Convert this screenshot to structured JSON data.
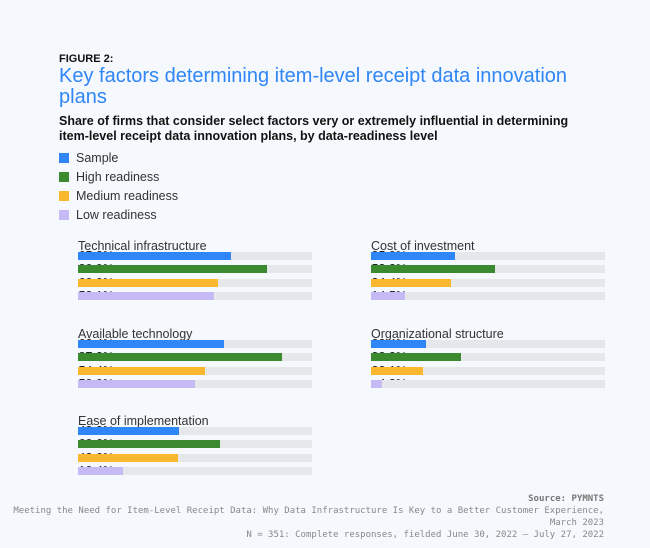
{
  "figure_label": "FIGURE 2:",
  "chart_data": {
    "type": "bar",
    "title": "Key factors determining item-level receipt data innovation plans",
    "subtitle": "Share of firms that consider select factors very or extremely influential in determining item-level receipt data innovation plans, by data-readiness level",
    "xlim": [
      0,
      100
    ],
    "legend_placement": "top-left",
    "series_names": [
      "Sample",
      "High readiness",
      "Medium readiness",
      "Low readiness"
    ],
    "colors": [
      "#2f86f6",
      "#3b8a2f",
      "#fbb82f",
      "#c5b9f6"
    ],
    "groups": [
      {
        "name": "Technical infrastructure",
        "values": [
          65.2,
          80.9,
          60.0,
          58.1
        ],
        "labels": [
          "65.2%",
          "80.9%",
          "60.0%",
          "58.1%"
        ]
      },
      {
        "name": "Cost of investment",
        "values": [
          35.9,
          53.2,
          34.4,
          14.5
        ],
        "labels": [
          "35.9%",
          "53.2%",
          "34.4%",
          "14.5%"
        ]
      },
      {
        "name": "Available technology",
        "values": [
          62.4,
          87.2,
          54.4,
          50.0
        ],
        "labels": [
          "62.4%",
          "87.2%",
          "54.4%",
          "50.0%"
        ]
      },
      {
        "name": "Organizational structure",
        "values": [
          23.4,
          38.3,
          22.1,
          4.8
        ],
        "labels": [
          "23.4%",
          "38.3%",
          "22.1%",
          "4.8%"
        ]
      },
      {
        "name": "Ease of implementation",
        "values": [
          43.3,
          60.6,
          42.6,
          19.4
        ],
        "labels": [
          "43.3%",
          "60.6%",
          "42.6%",
          "19.4%"
        ]
      }
    ]
  },
  "source": {
    "label": "Source: PYMNTS",
    "line1": "Meeting the Need for Item-Level Receipt Data: Why Data Infrastructure Is Key to a Better Customer Experience, March 2023",
    "line2": "N = 351: Complete responses, fielded June 30, 2022 – July 27, 2022"
  }
}
